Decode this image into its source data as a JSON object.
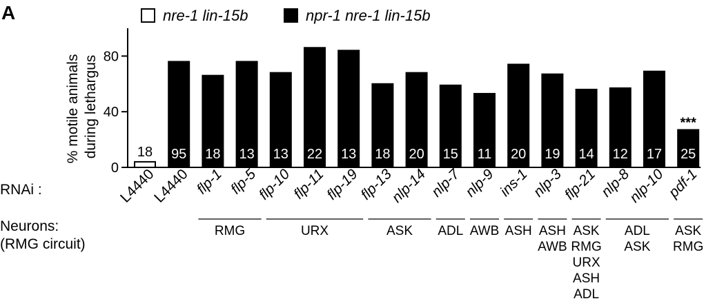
{
  "chart_data": {
    "type": "bar",
    "panel_label": "A",
    "ylabel_lines": [
      "% motile animals",
      "during lethargus"
    ],
    "ylim": [
      0,
      100
    ],
    "yticks": [
      0,
      40,
      80
    ],
    "grid": false,
    "legend_position": "top",
    "legend": [
      {
        "label": "nre-1 lin-15b",
        "fill": "#ffffff"
      },
      {
        "label": "npr-1 nre-1 lin-15b",
        "fill": "#000000"
      }
    ],
    "rnai_label": "RNAi :",
    "neurons_label": [
      "Neurons:",
      "(RMG circuit)"
    ],
    "categories": [
      "L4440",
      "L4440",
      "flp-1",
      "flp-5",
      "flp-10",
      "flp-11",
      "flp-19",
      "flp-13",
      "nlp-14",
      "nlp-7",
      "nlp-9",
      "ins-1",
      "nlp-3",
      "flp-21",
      "nlp-8",
      "nlp-10",
      "pdf-1"
    ],
    "values": [
      4,
      76,
      66,
      76,
      68,
      86,
      84,
      60,
      68,
      59,
      53,
      74,
      67,
      56,
      57,
      69,
      27
    ],
    "n": [
      "18",
      "95",
      "18",
      "13",
      "13",
      "22",
      "13",
      "18",
      "20",
      "15",
      "11",
      "20",
      "19",
      "14",
      "12",
      "17",
      "25"
    ],
    "bar_fill": [
      "#ffffff",
      "#000000",
      "#000000",
      "#000000",
      "#000000",
      "#000000",
      "#000000",
      "#000000",
      "#000000",
      "#000000",
      "#000000",
      "#000000",
      "#000000",
      "#000000",
      "#000000",
      "#000000",
      "#000000"
    ],
    "italic_categories": [
      false,
      false,
      true,
      true,
      true,
      true,
      true,
      true,
      true,
      true,
      true,
      true,
      true,
      true,
      true,
      true,
      true
    ],
    "annotations": [
      {
        "index": 16,
        "text": "***"
      }
    ],
    "neuron_groups": [
      {
        "start": 2,
        "end": 3,
        "lines": [
          "RMG"
        ]
      },
      {
        "start": 4,
        "end": 6,
        "lines": [
          "URX"
        ]
      },
      {
        "start": 7,
        "end": 8,
        "lines": [
          "ASK"
        ]
      },
      {
        "start": 9,
        "end": 9,
        "lines": [
          "ADL"
        ]
      },
      {
        "start": 10,
        "end": 10,
        "lines": [
          "AWB"
        ]
      },
      {
        "start": 11,
        "end": 11,
        "lines": [
          "ASH"
        ]
      },
      {
        "start": 12,
        "end": 12,
        "lines": [
          "ASH",
          "AWB"
        ]
      },
      {
        "start": 13,
        "end": 13,
        "lines": [
          "ASK",
          "RMG",
          "URX",
          "ASH",
          "ADL"
        ]
      },
      {
        "start": 14,
        "end": 15,
        "lines": [
          "ADL",
          "ASK"
        ]
      },
      {
        "start": 16,
        "end": 16,
        "lines": [
          "ASK",
          "RMG"
        ]
      }
    ]
  }
}
